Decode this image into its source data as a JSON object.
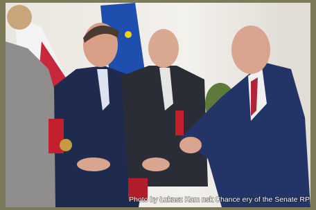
{
  "image": {
    "caption": "Photo by Łukasz Kam nsk  Chance  ery of the Senate RP"
  }
}
